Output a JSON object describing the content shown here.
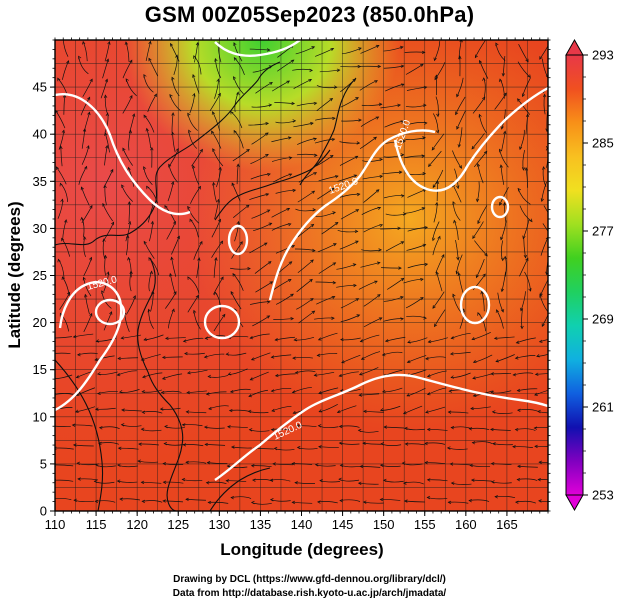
{
  "title": "GSM 00Z05Sep2023 (850.0hPa)",
  "x_axis": {
    "label": "Longitude (degrees)",
    "min": 110,
    "max": 170,
    "ticks": [
      "110",
      "115",
      "120",
      "125",
      "130",
      "135",
      "140",
      "145",
      "150",
      "155",
      "160",
      "165"
    ]
  },
  "y_axis": {
    "label": "Latitude  (degrees)",
    "min": 0,
    "max": 50,
    "ticks": [
      "0",
      "5",
      "10",
      "15",
      "20",
      "25",
      "30",
      "35",
      "40",
      "45"
    ]
  },
  "colorbar": {
    "min": 253,
    "max": 293,
    "labels": [
      "293",
      "285",
      "277",
      "269",
      "261",
      "253"
    ],
    "colors": [
      "#e000d8",
      "#8000c0",
      "#1010b0",
      "#1060e0",
      "#10b0e0",
      "#10d0b0",
      "#20d060",
      "#40d020",
      "#a0e020",
      "#f0e020",
      "#f8c020",
      "#f89018",
      "#f05020",
      "#e83848"
    ]
  },
  "contour_labels": [
    "1520.0",
    "1520.0",
    "1520.0",
    "1520.0"
  ],
  "credits": [
    "Drawing by DCL (https://www.gfd-dennou.org/library/dcl/)",
    "Data from http://database.rish.kyoto-u.ac.jp/arch/jmadata/"
  ]
}
